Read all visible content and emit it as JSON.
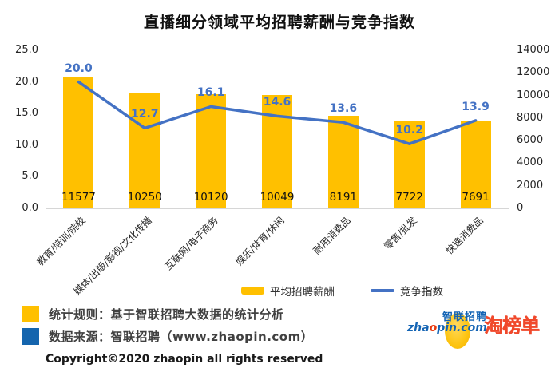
{
  "title": "直播细分领域平均招聘薪酬与竞争指数",
  "chart_data": {
    "type": "bar",
    "subtype": "bar-line-combo",
    "title": "直播细分领域平均招聘薪酬与竞争指数",
    "categories": [
      "教育/培训/院校",
      "媒体/出版/影视/文化传播",
      "互联网/电子商务",
      "娱乐/体育/休闲",
      "耐用消费品",
      "零售/批发",
      "快速消费品"
    ],
    "series": [
      {
        "name": "平均招聘薪酬",
        "type": "bar",
        "axis": "right",
        "color": "#FFC000",
        "values": [
          11577,
          10250,
          10120,
          10049,
          8191,
          7722,
          7691
        ]
      },
      {
        "name": "竞争指数",
        "type": "line",
        "axis": "left",
        "color": "#4472C4",
        "values": [
          20.0,
          12.7,
          16.1,
          14.6,
          13.6,
          10.2,
          13.9
        ]
      }
    ],
    "left_axis": {
      "min": 0,
      "max": 25,
      "step": 5,
      "ticks": [
        "25.0",
        "20.0",
        "15.0",
        "10.0",
        "5.0",
        "0.0"
      ]
    },
    "right_axis": {
      "min": 0,
      "max": 14000,
      "step": 2000,
      "ticks": [
        "14000",
        "12000",
        "10000",
        "8000",
        "6000",
        "4000",
        "2000",
        "0"
      ]
    },
    "grid": false,
    "legend_position": "bottom"
  },
  "notes": [
    {
      "bullet_color": "#FFC000",
      "text": "统计规则：基于智联招聘大数据的统计分析"
    },
    {
      "bullet_color": "#1565AE",
      "text": "数据来源：智联招聘（www.zhaopin.com）"
    }
  ],
  "footer": {
    "copyright": "Copyright©2020 zhaopin all rights reserved"
  },
  "logos": {
    "zhaopin_cn": "智联招聘",
    "zp_part1": "zha",
    "zp_part2": "o",
    "zp_part3": "pin.com",
    "taobangdan": "淘榜单"
  }
}
